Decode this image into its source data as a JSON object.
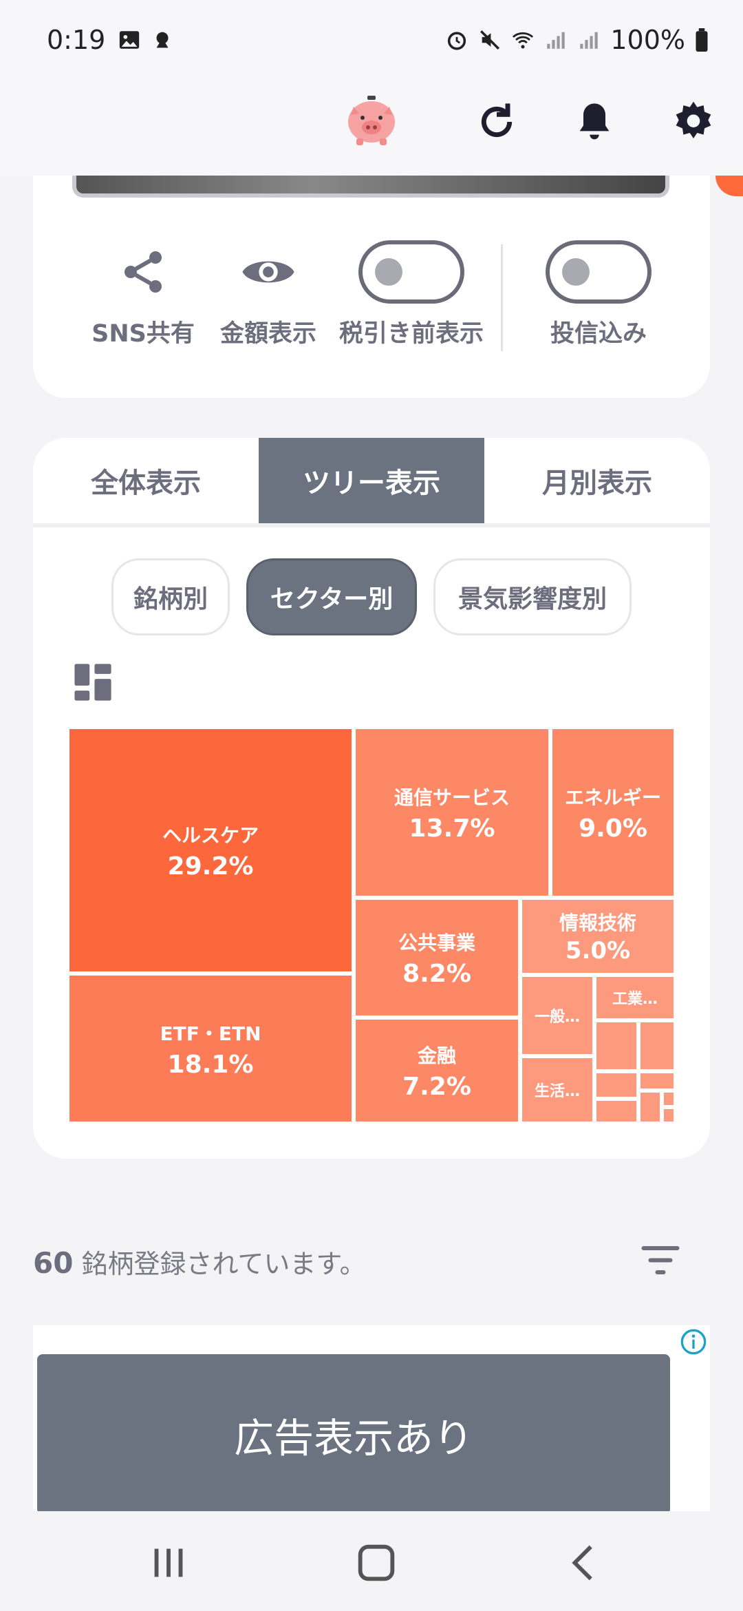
{
  "status_bar": {
    "time": "0:19",
    "battery": "100%"
  },
  "actions": {
    "share": "SNS共有",
    "show_amount": "金額表示",
    "pre_tax": "税引き前表示",
    "include_funds": "投信込み"
  },
  "tabs": [
    "全体表示",
    "ツリー表示",
    "月別表示"
  ],
  "segments": [
    "銘柄別",
    "セクター別",
    "景気影響度別"
  ],
  "chart_data": {
    "type": "treemap",
    "items": [
      {
        "name": "ヘルスケア",
        "value": 29.2,
        "label": "29.2%"
      },
      {
        "name": "ETF・ETN",
        "value": 18.1,
        "label": "18.1%"
      },
      {
        "name": "通信サービス",
        "value": 13.7,
        "label": "13.7%"
      },
      {
        "name": "エネルギー",
        "value": 9.0,
        "label": "9.0%"
      },
      {
        "name": "公共事業",
        "value": 8.2,
        "label": "8.2%"
      },
      {
        "name": "金融",
        "value": 7.2,
        "label": "7.2%"
      },
      {
        "name": "情報技術",
        "value": 5.0,
        "label": "5.0%"
      },
      {
        "name": "一般…"
      },
      {
        "name": "工業…"
      },
      {
        "name": "生活…"
      }
    ],
    "colors": {
      "primary": "#fd673c",
      "secondary": "#fc7c57",
      "tertiary": "#fd8866",
      "light": "#fd9a7e"
    }
  },
  "list": {
    "count": "60",
    "count_suffix": "銘柄登録されています。"
  },
  "ad": {
    "label": "広告表示あり"
  }
}
